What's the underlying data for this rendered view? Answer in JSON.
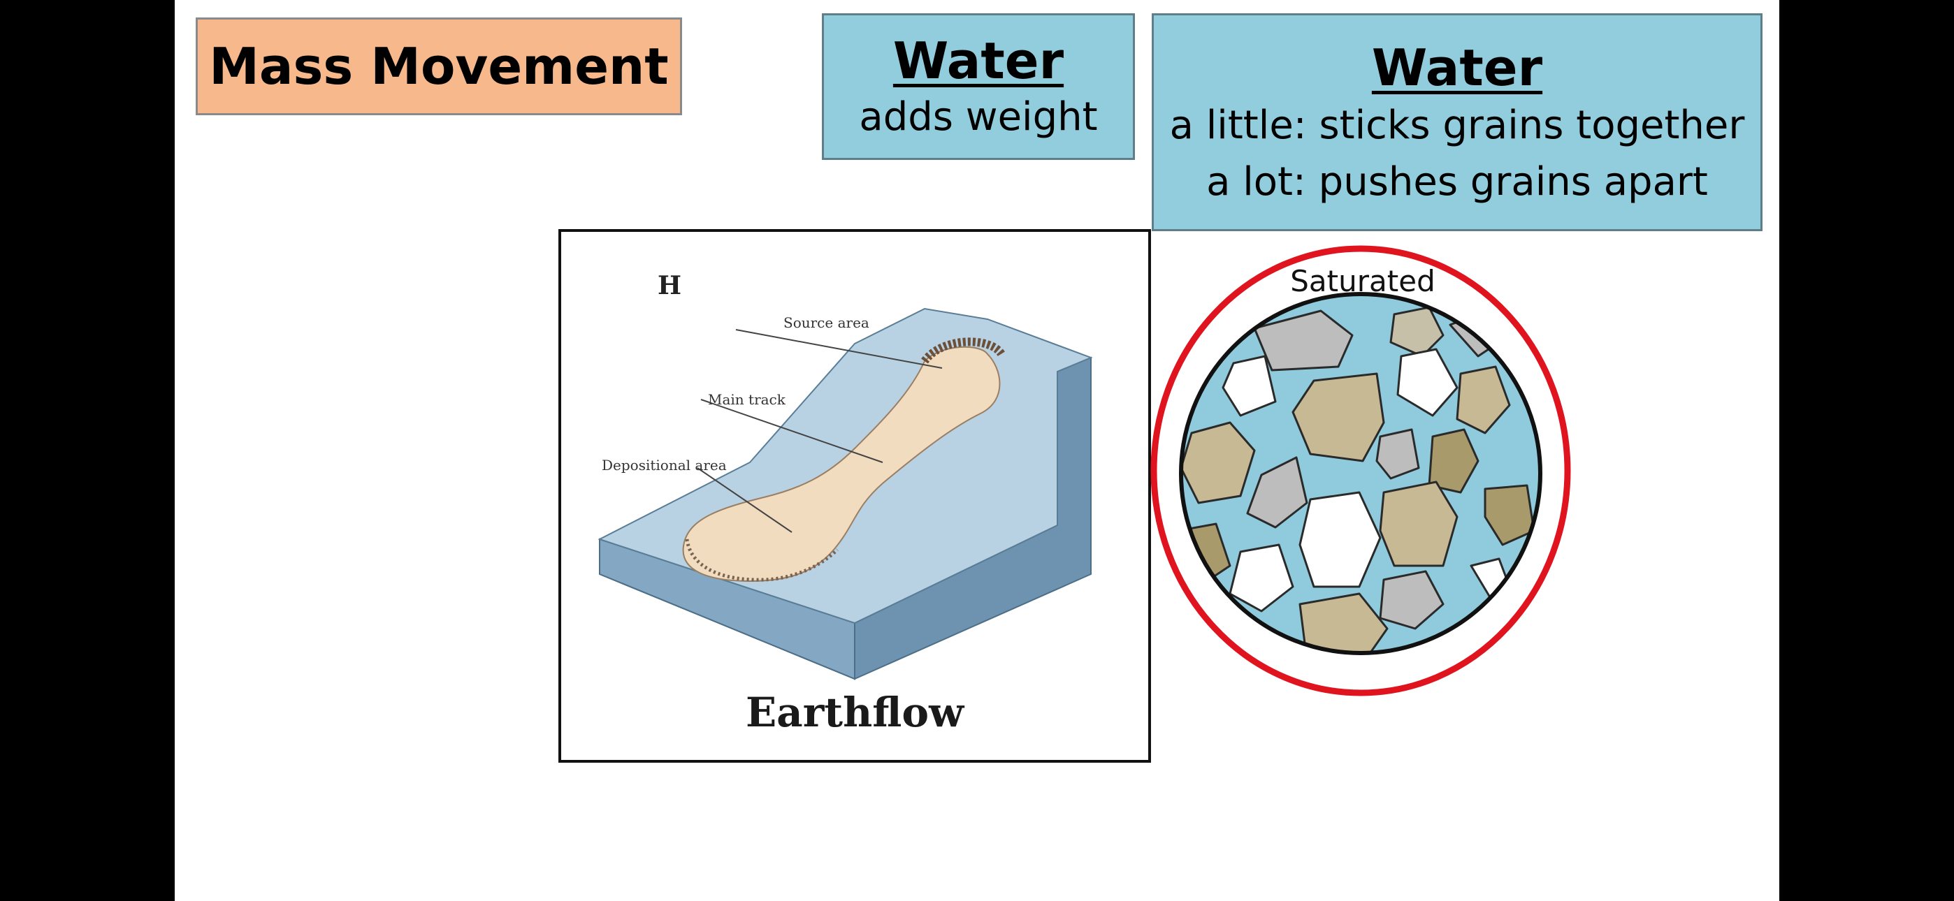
{
  "slide": {
    "title": "Mass Movement",
    "water_box_1": {
      "heading": "Water",
      "line1": "adds weight"
    },
    "water_box_2": {
      "heading": "Water",
      "line1": "a little: sticks grains together",
      "line2": "a lot: pushes grains apart"
    },
    "figure": {
      "panel_letter": "H",
      "label_source": "Source area",
      "label_track": "Main track",
      "label_deposition": "Depositional area",
      "caption": "Earthflow"
    },
    "grains_diagram": {
      "label": "Saturated"
    }
  },
  "colors": {
    "background": "#000000",
    "slide": "#ffffff",
    "title_box": "#f7b98c",
    "water_box": "#92cddd",
    "ring": "#e0141e",
    "water": "#8fcbdc"
  }
}
